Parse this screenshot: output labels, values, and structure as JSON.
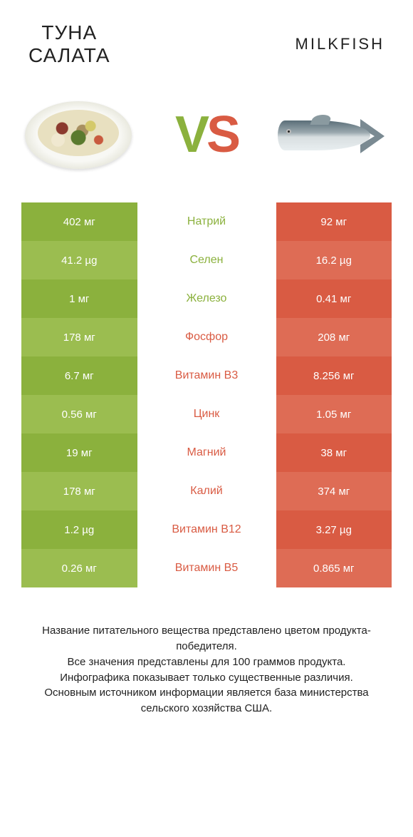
{
  "colors": {
    "green": "#8bb13d",
    "green_alt": "#9bbd50",
    "red": "#d95b43",
    "red_alt": "#de6c55",
    "text_dark": "#222222",
    "white": "#ffffff"
  },
  "header": {
    "left_title_line1": "Туна",
    "left_title_line2": "салата",
    "right_title": "Milkfish"
  },
  "vs": {
    "v": "V",
    "s": "S"
  },
  "comparison": {
    "type": "table",
    "rows": [
      {
        "left": "402 мг",
        "label": "Натрий",
        "right": "92 мг",
        "winner": "left"
      },
      {
        "left": "41.2 µg",
        "label": "Селен",
        "right": "16.2 µg",
        "winner": "left"
      },
      {
        "left": "1 мг",
        "label": "Железо",
        "right": "0.41 мг",
        "winner": "left"
      },
      {
        "left": "178 мг",
        "label": "Фосфор",
        "right": "208 мг",
        "winner": "right"
      },
      {
        "left": "6.7 мг",
        "label": "Витамин B3",
        "right": "8.256 мг",
        "winner": "right"
      },
      {
        "left": "0.56 мг",
        "label": "Цинк",
        "right": "1.05 мг",
        "winner": "right"
      },
      {
        "left": "19 мг",
        "label": "Магний",
        "right": "38 мг",
        "winner": "right"
      },
      {
        "left": "178 мг",
        "label": "Калий",
        "right": "374 мг",
        "winner": "right"
      },
      {
        "left": "1.2 µg",
        "label": "Витамин B12",
        "right": "3.27 µg",
        "winner": "right"
      },
      {
        "left": "0.26 мг",
        "label": "Витамин B5",
        "right": "0.865 мг",
        "winner": "right"
      }
    ]
  },
  "footer": {
    "line1": "Название питательного вещества представлено цветом продукта-победителя.",
    "line2": "Все значения представлены для 100 граммов продукта.",
    "line3": "Инфографика показывает только существенные различия.",
    "line4": "Основным источником информации является база министерства сельского хозяйства США."
  }
}
